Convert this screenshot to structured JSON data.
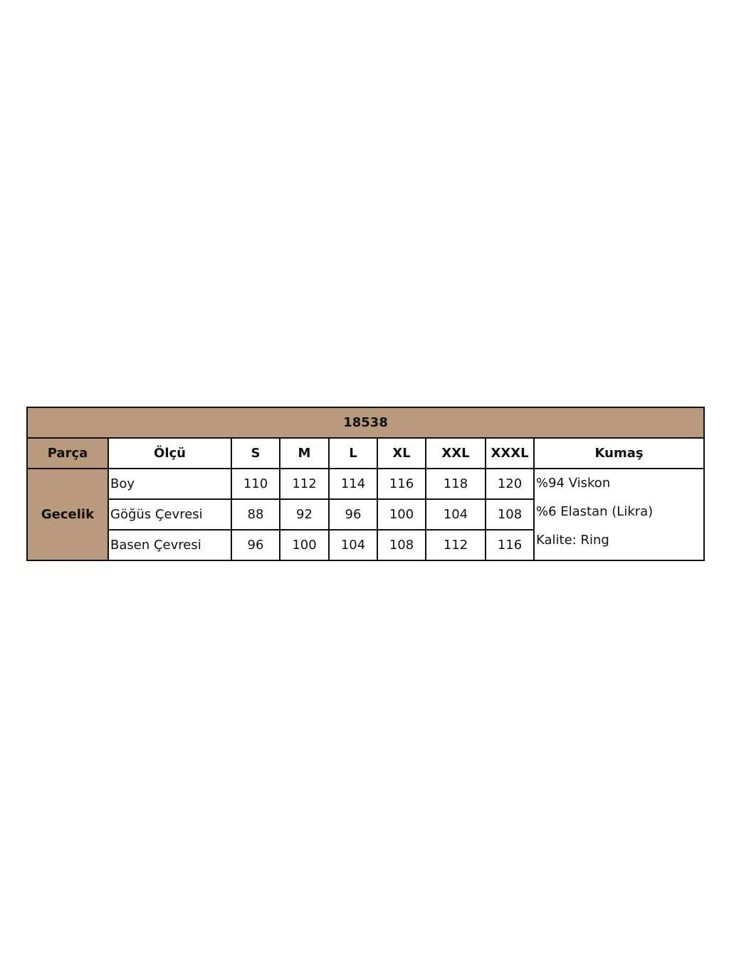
{
  "table": {
    "title": "18538",
    "header_color": "#b99a7c",
    "headers": {
      "part": "Parça",
      "measure": "Ölçü",
      "sizes": [
        "S",
        "M",
        "L",
        "XL",
        "XXL",
        "XXXL"
      ],
      "fabric": "Kumaş"
    },
    "part": "Gecelik",
    "rows": [
      {
        "label": "Boy",
        "values": [
          "110",
          "112",
          "114",
          "116",
          "118",
          "120"
        ]
      },
      {
        "label": "Göğüs Çevresi",
        "values": [
          "88",
          "92",
          "96",
          "100",
          "104",
          "108"
        ]
      },
      {
        "label": "Basen Çevresi",
        "values": [
          "96",
          "100",
          "104",
          "108",
          "112",
          "116"
        ]
      }
    ],
    "fabric_lines": [
      "%94 Viskon",
      "%6 Elastan (Likra)",
      "Kalite: Ring"
    ]
  }
}
